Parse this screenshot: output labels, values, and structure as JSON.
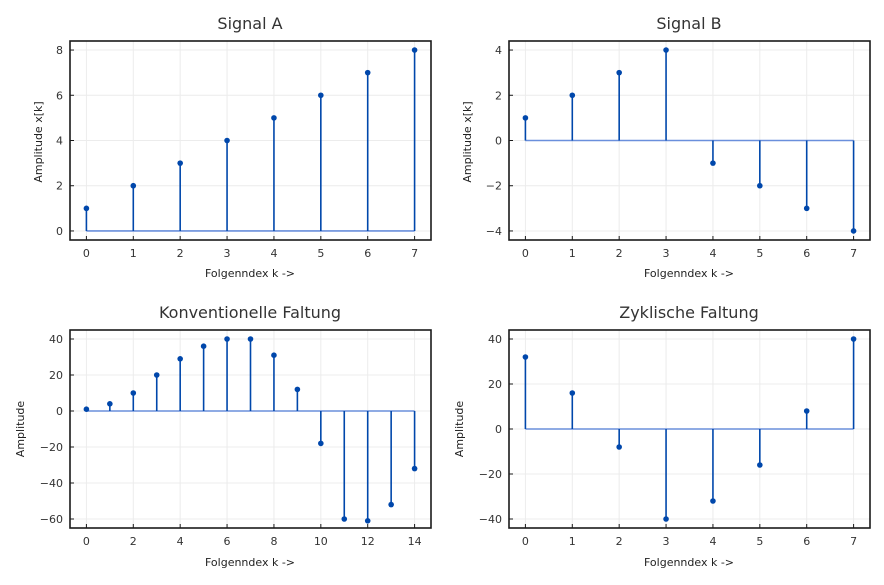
{
  "colors": {
    "stem": "#0047ab",
    "baseline": "#6a8fdc",
    "marker": "#0047ab",
    "grid": "#ececec"
  },
  "chart_data": [
    {
      "type": "stem",
      "title": "Signal A",
      "xlabel": "Folgenndex k ->",
      "ylabel": "Amplitude x[k]",
      "x": [
        0,
        1,
        2,
        3,
        4,
        5,
        6,
        7
      ],
      "values": [
        1,
        2,
        3,
        4,
        5,
        6,
        7,
        8
      ],
      "xlim": [
        -0.35,
        7.35
      ],
      "ylim": [
        -0.4,
        8.4
      ],
      "xticks": [
        0,
        1,
        2,
        3,
        4,
        5,
        6,
        7
      ],
      "yticks": [
        0,
        2,
        4,
        6,
        8
      ],
      "grid": true
    },
    {
      "type": "stem",
      "title": "Signal B",
      "xlabel": "Folgenndex k ->",
      "ylabel": "Amplitude x[k]",
      "x": [
        0,
        1,
        2,
        3,
        4,
        5,
        6,
        7
      ],
      "values": [
        1,
        2,
        3,
        4,
        -1,
        -2,
        -3,
        -4
      ],
      "xlim": [
        -0.35,
        7.35
      ],
      "ylim": [
        -4.4,
        4.4
      ],
      "xticks": [
        0,
        1,
        2,
        3,
        4,
        5,
        6,
        7
      ],
      "yticks": [
        -4,
        -2,
        0,
        2,
        4
      ],
      "ytick_labels": [
        "−4",
        "−2",
        "0",
        "2",
        "4"
      ],
      "grid": true
    },
    {
      "type": "stem",
      "title": "Konventionelle Faltung",
      "xlabel": "Folgenndex k ->",
      "ylabel": "Amplitude",
      "x": [
        0,
        1,
        2,
        3,
        4,
        5,
        6,
        7,
        8,
        9,
        10,
        11,
        12,
        13,
        14
      ],
      "values": [
        1,
        4,
        10,
        20,
        29,
        36,
        40,
        40,
        31,
        12,
        -18,
        -60,
        -61,
        -52,
        -32
      ],
      "xlim": [
        -0.7,
        14.7
      ],
      "ylim": [
        -65,
        45
      ],
      "xticks": [
        0,
        2,
        4,
        6,
        8,
        10,
        12,
        14
      ],
      "yticks": [
        -60,
        -40,
        -20,
        0,
        20,
        40
      ],
      "ytick_labels": [
        "−60",
        "−40",
        "−20",
        "0",
        "20",
        "40"
      ],
      "grid": true
    },
    {
      "type": "stem",
      "title": "Zyklische Faltung",
      "xlabel": "Folgenndex k ->",
      "ylabel": "Amplitude",
      "x": [
        0,
        1,
        2,
        3,
        4,
        5,
        6,
        7
      ],
      "values": [
        32,
        16,
        -8,
        -40,
        -32,
        -16,
        8,
        40
      ],
      "xlim": [
        -0.35,
        7.35
      ],
      "ylim": [
        -44,
        44
      ],
      "xticks": [
        0,
        1,
        2,
        3,
        4,
        5,
        6,
        7
      ],
      "yticks": [
        -40,
        -20,
        0,
        20,
        40
      ],
      "ytick_labels": [
        "−40",
        "−20",
        "0",
        "20",
        "40"
      ],
      "grid": true
    }
  ]
}
